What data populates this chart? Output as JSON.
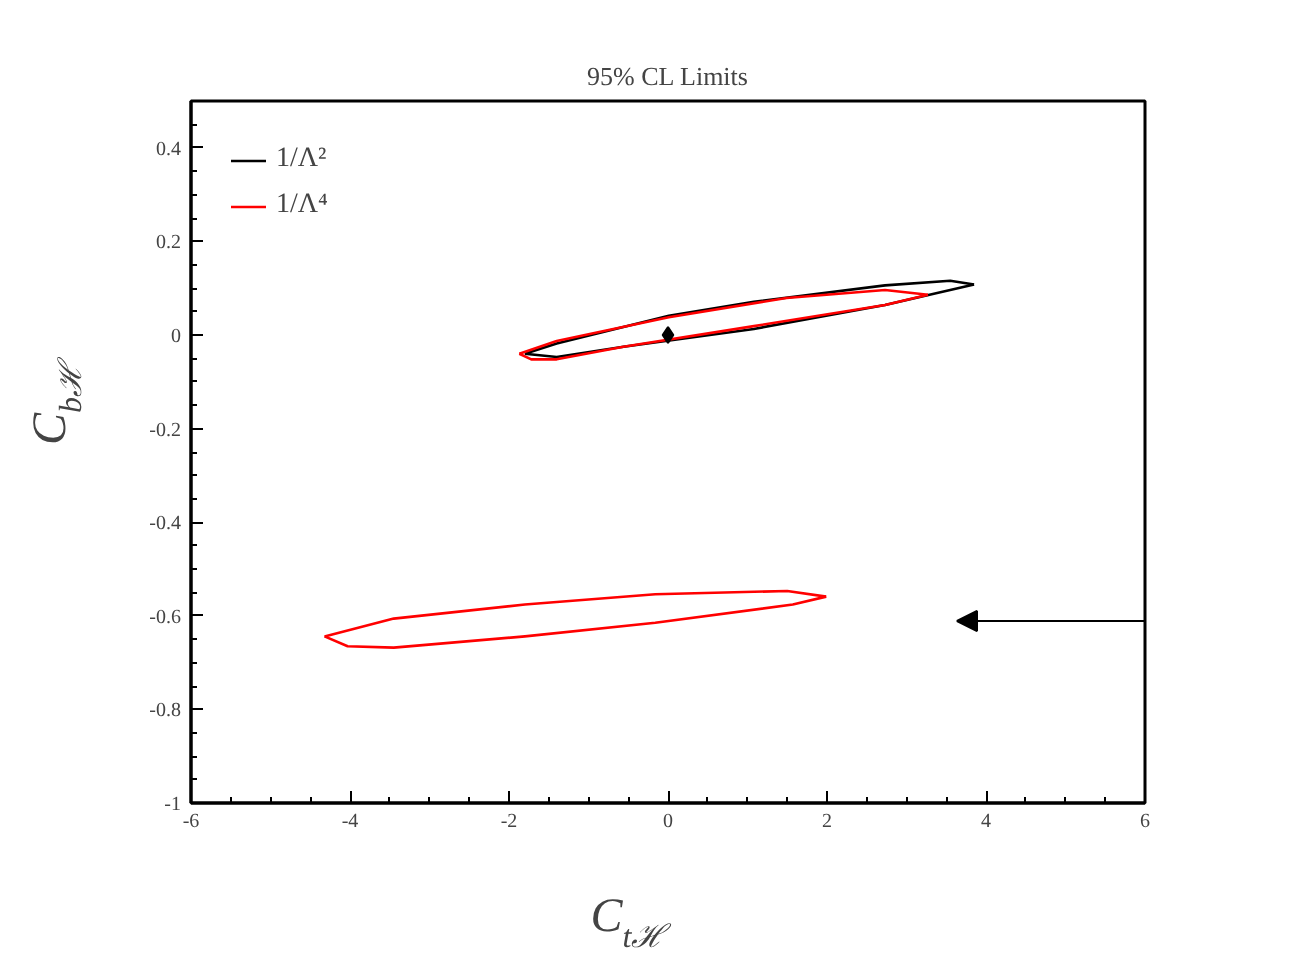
{
  "chart_data": {
    "type": "line",
    "title": "95% CL Limits",
    "xlabel": "C$_{tℋ}$",
    "ylabel": "C$_{bℋ}$",
    "xlim": [
      -6,
      6
    ],
    "xticks": [
      -6,
      -4,
      -2,
      0,
      2,
      4,
      6
    ],
    "ylim": [
      -1,
      0.5
    ],
    "yticks": [
      -1,
      -0.8,
      -0.6,
      -0.4,
      -0.2,
      0,
      0.2,
      0.4
    ],
    "grid": false,
    "legend": "top left",
    "line_style": "solid",
    "series": [
      {
        "name": "1/Λ²",
        "color": "#000000",
        "x": [
          -1.8,
          -1.4,
          0.01,
          1.08,
          2.73,
          3.55,
          3.85
        ],
        "values": [
          -0.04,
          -0.018,
          0.041,
          0.071,
          0.106,
          0.116,
          0.108
        ]
      },
      {
        "color": "#000000",
        "x": [
          -1.8,
          -1.4,
          -0.56,
          1.08,
          2.73,
          3.85
        ],
        "values": [
          -0.04,
          -0.047,
          -0.025,
          0.013,
          0.064,
          0.108
        ]
      },
      {
        "name": "1/Λ⁴",
        "color": "#ff0000",
        "x": [
          -1.87,
          -1.4,
          0.01,
          1.49,
          2.73,
          3.27
        ],
        "values": [
          -0.04,
          -0.013,
          0.038,
          0.079,
          0.096,
          0.086
        ]
      },
      {
        "color": "#ff0000",
        "x": [
          -1.87,
          -1.72,
          -1.4,
          -0.56,
          1.08,
          2.73,
          3.27
        ],
        "values": [
          -0.04,
          -0.052,
          -0.052,
          -0.025,
          0.019,
          0.064,
          0.086
        ]
      },
      {
        "color": "#ff0000",
        "x": [
          -4.32,
          -3.45,
          -1.8,
          -0.16,
          1.5,
          1.99
        ],
        "values": [
          -0.644,
          -0.606,
          -0.576,
          -0.554,
          -0.547,
          -0.559
        ]
      },
      {
        "color": "#ff0000",
        "x": [
          -4.32,
          -4.03,
          -3.45,
          -1.8,
          -0.16,
          1.57,
          1.99
        ],
        "values": [
          -0.644,
          -0.665,
          -0.668,
          -0.644,
          -0.615,
          -0.576,
          -0.559
        ]
      },
      {
        "type": "scatter",
        "marker": "diamond",
        "color": "#000000",
        "x": [
          0
        ],
        "values": [
          0
        ]
      }
    ]
  }
}
